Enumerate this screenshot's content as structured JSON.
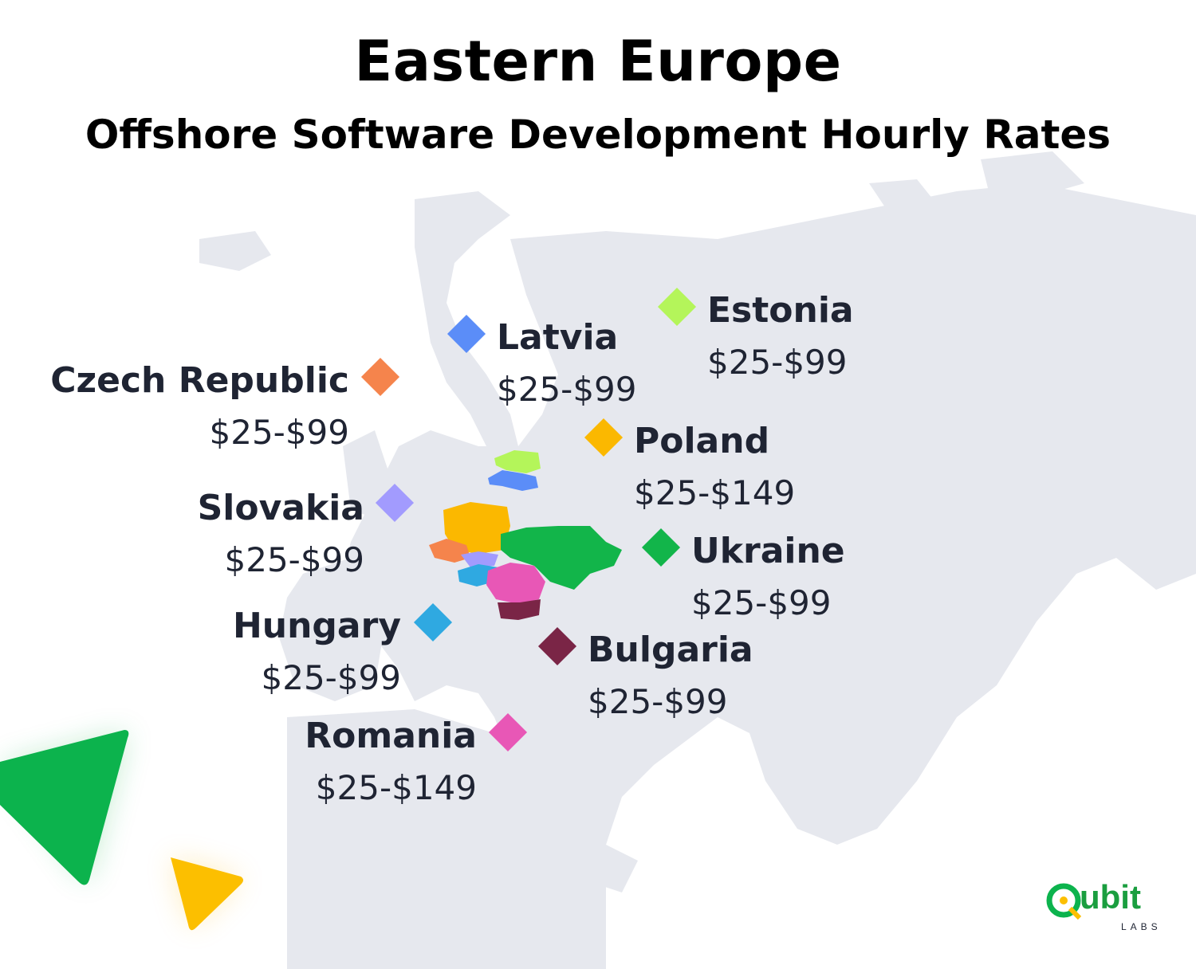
{
  "title": "Eastern Europe",
  "subtitle": "Offshore Software Development Hourly Rates",
  "countries": [
    {
      "name": "Czech Republic",
      "rate": "$25-$99",
      "color": "#f5844c"
    },
    {
      "name": "Latvia",
      "rate": "$25-$99",
      "color": "#5b8df8"
    },
    {
      "name": "Estonia",
      "rate": "$25-$99",
      "color": "#b4f55a"
    },
    {
      "name": "Poland",
      "rate": "$25-$149",
      "color": "#fbb800"
    },
    {
      "name": "Slovakia",
      "rate": "$25-$99",
      "color": "#a29bfe"
    },
    {
      "name": "Ukraine",
      "rate": "$25-$99",
      "color": "#12b54a"
    },
    {
      "name": "Hungary",
      "rate": "$25-$99",
      "color": "#2fa9e1"
    },
    {
      "name": "Bulgaria",
      "rate": "$25-$99",
      "color": "#7a2546"
    },
    {
      "name": "Romania",
      "rate": "$25-$149",
      "color": "#e857b6"
    }
  ],
  "logo": {
    "name": "Qubit",
    "sub": "LABS"
  }
}
